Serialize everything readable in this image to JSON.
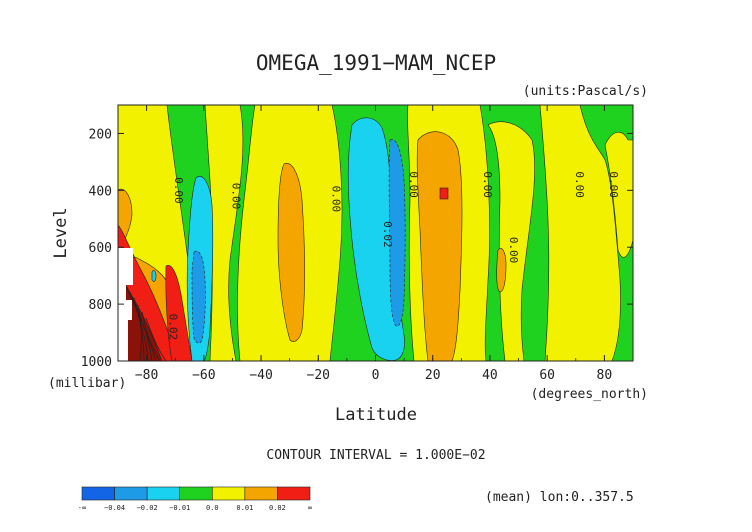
{
  "chart_data": {
    "type": "contour",
    "title": "OMEGA_1991−MAM_NCEP",
    "units_label": "(units:Pascal/s)",
    "xlabel": "Latitude",
    "x_units_label": "(degrees_north)",
    "ylabel": "Level",
    "y_units_label": "(millibar)",
    "xlim": [
      -90,
      90
    ],
    "ylim": [
      1000,
      100
    ],
    "x_ticks": [
      -80,
      -60,
      -40,
      -20,
      0,
      20,
      40,
      60,
      80
    ],
    "x_tick_labels": [
      "−80",
      "−60",
      "−40",
      "−20",
      "0",
      "20",
      "40",
      "60",
      "80"
    ],
    "y_ticks": [
      200,
      400,
      600,
      800,
      1000
    ],
    "y_tick_labels": [
      "200",
      "400",
      "600",
      "800",
      "1000"
    ],
    "contour_interval_text": "CONTOUR INTERVAL = 1.000E−02",
    "footer_text": "(mean) lon:0..357.5",
    "contour_labels": [
      {
        "text": "0.00",
        "lat": -70,
        "level": 400
      },
      {
        "text": "0.00",
        "lat": -50,
        "level": 420
      },
      {
        "text": "0.00",
        "lat": -15,
        "level": 430
      },
      {
        "text": "0.00",
        "lat": 12,
        "level": 380
      },
      {
        "text": "0.02",
        "lat": 3,
        "level": 555
      },
      {
        "text": "0.00",
        "lat": 38,
        "level": 380
      },
      {
        "text": "0.00",
        "lat": 47,
        "level": 610
      },
      {
        "text": "0.00",
        "lat": 70,
        "level": 380
      },
      {
        "text": "0.00",
        "lat": 82,
        "level": 380
      },
      {
        "text": "0.02",
        "lat": -72,
        "level": 880
      }
    ],
    "bands": [
      {
        "level_class": "green",
        "color": "#1fd21f",
        "lat_from": -90,
        "lat_to": 90
      },
      {
        "level_class": "yellow",
        "color": "#f2f200",
        "lat_from": -90,
        "lat_to": -68
      },
      {
        "level_class": "yellow",
        "color": "#f2f200",
        "lat_from": -50,
        "lat_to": -10
      },
      {
        "level_class": "yellow",
        "color": "#f2f200",
        "lat_from": 10,
        "lat_to": 38
      },
      {
        "level_class": "yellow",
        "color": "#f2f200",
        "lat_from": 50,
        "lat_to": 88
      }
    ],
    "colorbar": {
      "colors": [
        "#1464e6",
        "#1e9be6",
        "#19d2f0",
        "#1fd21f",
        "#f2f200",
        "#f5a500",
        "#f01e14"
      ],
      "labels": [
        "-∞",
        "−0.04",
        "−0.02",
        "−0.01",
        "0.0",
        "0.01",
        "0.02",
        "∞"
      ]
    }
  }
}
